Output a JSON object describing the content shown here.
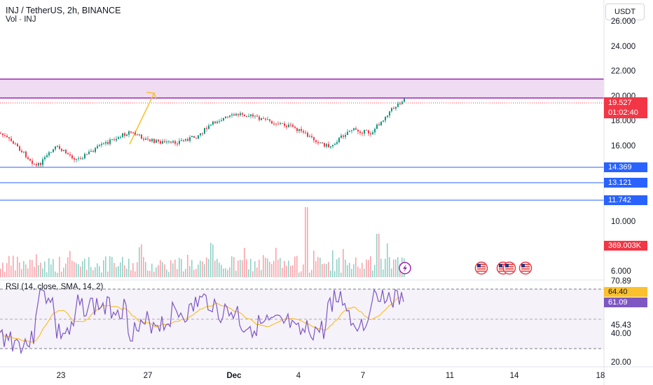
{
  "header": {
    "title": "INJ / TetherUS, 2h, BINANCE",
    "volume_label": "Vol · INJ",
    "rsi_label": "RSI (14, close, SMA, 14, 2)"
  },
  "currency_button": "USDT",
  "price_scale": [
    "26.000",
    "24.000",
    "22.000",
    "20.000",
    "18.000",
    "16.000",
    "10.000",
    "6.000"
  ],
  "level_tags": [
    {
      "label": "14.369",
      "color": "#2962ff"
    },
    {
      "label": "13.121",
      "color": "#2962ff"
    },
    {
      "label": "11.742",
      "color": "#2962ff"
    }
  ],
  "last_price": {
    "price": "19.527",
    "countdown": "01:02:40",
    "color": "#f23645"
  },
  "volume_tag": {
    "label": "369.003K",
    "color": "#f23645"
  },
  "rsi_scale": [
    "70.89",
    "45.43",
    "40.00",
    "20.00"
  ],
  "rsi_tags": [
    {
      "label": "64.40",
      "color": "#fbc02d"
    },
    {
      "label": "61.09",
      "color": "#7e57c2"
    }
  ],
  "time_axis": [
    "23",
    "27",
    "Dec",
    "4",
    "7",
    "11",
    "14",
    "18"
  ],
  "colors": {
    "up": "#089981",
    "down": "#f23645",
    "zone_fill": "#e1bee7",
    "zone_border": "#9c27b0",
    "level_line": "#2962ff",
    "rsi_line": "#7e57c2",
    "rsi_ma": "#fbc02d",
    "arrow": "#fbc02d"
  },
  "icons": [
    "lightning-icon",
    "us-flag-icon",
    "us-flag-icon",
    "us-flag-icon",
    "us-flag-icon"
  ]
}
